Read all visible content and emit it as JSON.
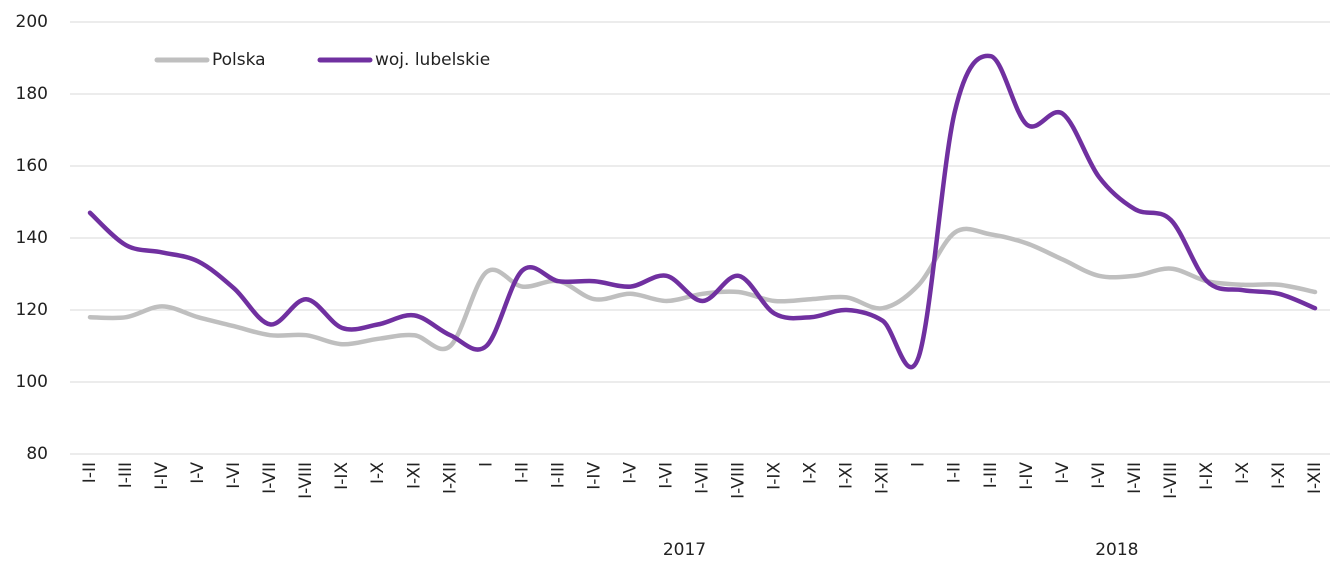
{
  "chart_data": {
    "type": "line",
    "category_groups": [
      {
        "label": null,
        "categories": [
          "I-II",
          "I-III",
          "I-IV",
          "I-V",
          "I-VI",
          "I-VII",
          "I-VIII",
          "I-IX",
          "I-X",
          "I-XI",
          "I-XII"
        ]
      },
      {
        "label": "2017",
        "categories": [
          "I",
          "I-II",
          "I-III",
          "I-IV",
          "I-V",
          "I-VI",
          "I-VII",
          "I-VIII",
          "I-IX",
          "I-X",
          "I-XI",
          "I-XII"
        ]
      },
      {
        "label": "2018",
        "categories": [
          "I",
          "I-II",
          "I-III",
          "I-IV",
          "I-V",
          "I-VI",
          "I-VII",
          "I-VIII",
          "I-IX",
          "I-X",
          "I-XI",
          "I-XII"
        ]
      }
    ],
    "series": [
      {
        "name": "Polska",
        "color": "#bfbfbf",
        "values": [
          118,
          118,
          121,
          118,
          115.5,
          113,
          113,
          110.5,
          112,
          113,
          110,
          130.5,
          126.5,
          128,
          123,
          124.5,
          122.5,
          124.5,
          125,
          122.5,
          123,
          123.5,
          120.5,
          127,
          141.5,
          141,
          138.5,
          134,
          129.5,
          129.5,
          131.5,
          128,
          127,
          127,
          125
        ]
      },
      {
        "name": "woj. lubelskie",
        "color": "#7030a0",
        "values": [
          147,
          138,
          136,
          133.5,
          126,
          116,
          123,
          115,
          116,
          118.5,
          113,
          110,
          131,
          128,
          128,
          126.5,
          129.5,
          122.5,
          129.5,
          119,
          118,
          120,
          117,
          107,
          175,
          190.5,
          171.5,
          174.5,
          157,
          148,
          145,
          128,
          125.5,
          124.5,
          120.5
        ]
      }
    ],
    "ylim": [
      80,
      200
    ],
    "yticks": [
      80,
      100,
      120,
      140,
      160,
      180,
      200
    ],
    "grid": true,
    "legend": "top-left"
  }
}
